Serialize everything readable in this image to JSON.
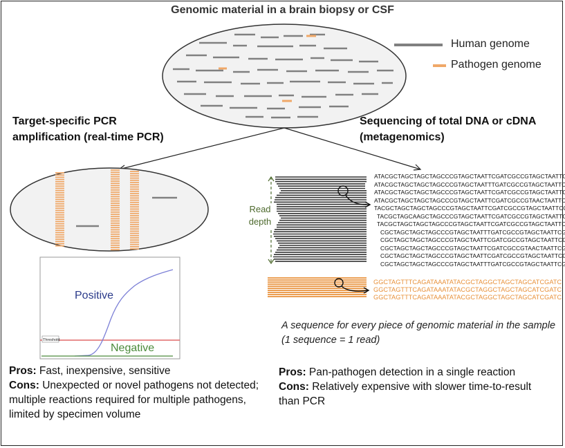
{
  "title": "Genomic material in a brain biopsy or CSF",
  "legend": {
    "human_label": "Human genome",
    "pathogen_label": "Pathogen genome",
    "human_color": "#808080",
    "pathogen_color": "#f0a868"
  },
  "left_heading": [
    "Target-specific PCR",
    "amplification (real-time PCR)"
  ],
  "right_heading": [
    "Sequencing of total DNA or cDNA",
    "(metagenomics)"
  ],
  "read_depth_label": [
    "Read",
    "depth"
  ],
  "human_reads": [
    "ATACGCTAGCTAGCTAGCCCGTAGCTAATTCGATCGCCGTAGCTAATTCGA",
    "ATACGCTAGCTAGCTAGCCCGTAGCTAATTTGATCGCCGTAGCTAATTCGA",
    "ATACGCTAGCTAGCTAGCCCGTAGCTAATTCGATCGCCGTAGCTAATTCGA",
    "ATACGCTAGCTAGCTAGCCCGTAGCTAATTCGATCGCCGTAACTAATTCGA",
    "TACGCTAGCTAGCTAGCCCGTAGCTAATTCGATCGCCGTAGCTAATTCGA",
    "TACGCTAGCAAGCTAGCCCGTAGCTAATTCGATCGCCGTAGCTAATTCGAG",
    "TACGCTAGCTAGCTAGCCCGTAGCTAATTCGATCGCCGTAGCTAATTCGAG",
    "CGCTAGCTAGCTAGCCCGTAGCTAATTTGATCGCCGTAGCTAATTCGAGT",
    "CGCTAGCTAGCTAGCCCGTAGCTAATTCGATCGCCGTAGCTAATTCGAGT",
    "CGCTAGCTAGCTAGCCCGTAGCTAATTCGATCGCCGTAACTAATTCGAGT",
    "CGCTAGCTAGCTAGCCCGTAGCTAATTCGATCGCCGTAGCTAATTCGAGT",
    "CGCTAGCTAGCTAGCCCGTAGCTAATTTGATCGCCGTAGCTAATTCGAGT"
  ],
  "pathogen_reads": [
    "GGCTAGTTTCAGATAAATATACGCTAGGCTAGCTAGCATCGATC",
    "GGCTAGTTTCAGATAAATATACGCTAGGCTAGCTAGCATCGATC",
    "GGCTAGTTTCAGATAAATATACGCTAGGCTAGCTAGCATCGATC"
  ],
  "caption": "A sequence for every piece of genomic material in the sample (1 sequence = 1 read)",
  "chart": {
    "positive_label": "Positive",
    "negative_label": "Negative",
    "threshold_label": "Threshold",
    "positive_color": "#7b7fd6",
    "negative_color": "#4a8a3a",
    "threshold_color": "#e06868"
  },
  "left_pros": {
    "pros_label": "Pros:",
    "pros_text": " Fast, inexpensive, sensitive",
    "cons_label": "Cons:",
    "cons_text": " Unexpected or novel pathogens not detected; multiple reactions  required for multiple pathogens, limited by specimen volume"
  },
  "right_pros": {
    "pros_label": "Pros:",
    "pros_text": " Pan-pathogen detection in a single reaction",
    "cons_label": "Cons:",
    "cons_text": " Relatively expensive with slower time-to-result than PCR"
  }
}
